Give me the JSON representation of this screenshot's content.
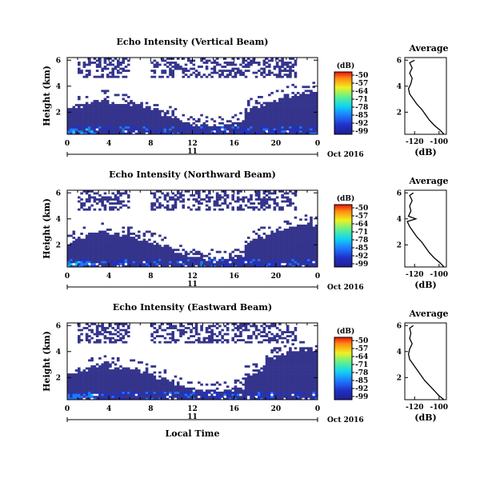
{
  "chart_data": [
    {
      "type": "heatmap",
      "title": "Echo Intensity (Vertical Beam)",
      "ylabel": "Height (km)",
      "xlabel": "",
      "xticks": [
        "0",
        "4",
        "8",
        "12",
        "16",
        "20",
        "0"
      ],
      "xlim": [
        0,
        24
      ],
      "ylim": [
        0.3,
        6.2
      ],
      "yticks": [
        "2",
        "4",
        "6"
      ],
      "date_label": "11",
      "month_label": "Oct 2016",
      "colorbar": {
        "label": "(dB)",
        "ticks": [
          "-50",
          "-57",
          "-64",
          "-71",
          "-78",
          "-85",
          "-92",
          "-99"
        ],
        "range": [
          -99,
          -50
        ]
      },
      "profile": {
        "title": "Average",
        "xlabel": "(dB)",
        "xticks": [
          "-120",
          "-100"
        ],
        "xlim": [
          -128,
          -94
        ],
        "ylim": [
          0.3,
          6.2
        ],
        "yticks": [
          "2",
          "4",
          "6"
        ],
        "heights": [
          0.3,
          0.6,
          1.0,
          1.4,
          1.8,
          2.2,
          2.6,
          3.0,
          3.4,
          3.8,
          4.2,
          4.6,
          5.0,
          5.4,
          5.8,
          6.0
        ],
        "values": [
          -96,
          -99,
          -104,
          -108,
          -111,
          -114,
          -118,
          -121,
          -124,
          -125,
          -123,
          -122,
          -124,
          -122,
          -124,
          -120
        ]
      }
    },
    {
      "type": "heatmap",
      "title": "Echo Intensity (Northward Beam)",
      "ylabel": "Height (km)",
      "xlabel": "",
      "xticks": [
        "0",
        "4",
        "8",
        "12",
        "16",
        "20",
        "0"
      ],
      "xlim": [
        0,
        24
      ],
      "ylim": [
        0.3,
        6.2
      ],
      "yticks": [
        "2",
        "4",
        "6"
      ],
      "date_label": "11",
      "month_label": "Oct 2016",
      "colorbar": {
        "label": "(dB)",
        "ticks": [
          "-50",
          "-57",
          "-64",
          "-71",
          "-78",
          "-85",
          "-92",
          "-99"
        ],
        "range": [
          -99,
          -50
        ]
      },
      "profile": {
        "title": "Average",
        "xlabel": "(dB)",
        "xticks": [
          "-120",
          "-100"
        ],
        "xlim": [
          -128,
          -94
        ],
        "ylim": [
          0.3,
          6.2
        ],
        "yticks": [
          "2",
          "4",
          "6"
        ],
        "heights": [
          0.3,
          0.6,
          1.0,
          1.4,
          1.8,
          2.2,
          2.6,
          3.0,
          3.4,
          3.8,
          4.0,
          4.2,
          4.6,
          5.0,
          5.4,
          5.8,
          6.0
        ],
        "values": [
          -96,
          -99,
          -104,
          -108,
          -111,
          -114,
          -118,
          -121,
          -124,
          -126,
          -119,
          -125,
          -123,
          -124,
          -122,
          -124,
          -121
        ]
      }
    },
    {
      "type": "heatmap",
      "title": "Echo Intensity (Eastward Beam)",
      "ylabel": "Height (km)",
      "xlabel": "Local Time",
      "xticks": [
        "0",
        "4",
        "8",
        "12",
        "16",
        "20",
        "0"
      ],
      "xlim": [
        0,
        24
      ],
      "ylim": [
        0.3,
        6.2
      ],
      "yticks": [
        "2",
        "4",
        "6"
      ],
      "date_label": "11",
      "month_label": "Oct 2016",
      "colorbar": {
        "label": "(dB)",
        "ticks": [
          "-50",
          "-57",
          "-64",
          "-71",
          "-78",
          "-85",
          "-92",
          "-99"
        ],
        "range": [
          -99,
          -50
        ]
      },
      "profile": {
        "title": "Average",
        "xlabel": "(dB)",
        "xticks": [
          "-120",
          "-100"
        ],
        "xlim": [
          -128,
          -94
        ],
        "ylim": [
          0.3,
          6.2
        ],
        "yticks": [
          "2",
          "4",
          "6"
        ],
        "heights": [
          0.3,
          0.6,
          1.0,
          1.4,
          1.8,
          2.2,
          2.6,
          3.0,
          3.4,
          3.8,
          4.2,
          4.6,
          5.0,
          5.4,
          5.8,
          6.0
        ],
        "values": [
          -96,
          -100,
          -104,
          -108,
          -112,
          -115,
          -118,
          -121,
          -124,
          -125,
          -124,
          -122,
          -124,
          -123,
          -124,
          -121
        ]
      }
    }
  ]
}
